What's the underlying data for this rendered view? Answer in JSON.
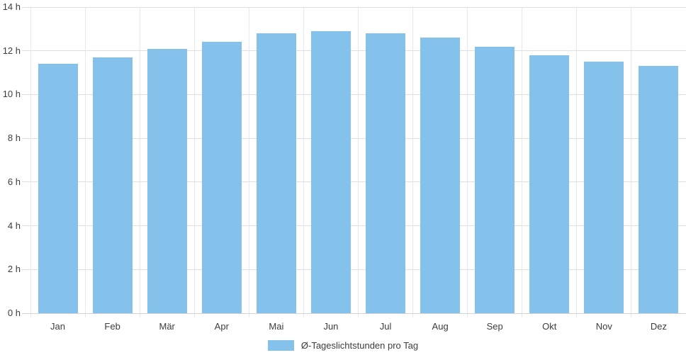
{
  "chart_data": {
    "type": "bar",
    "title": "",
    "xlabel": "",
    "ylabel": "",
    "categories": [
      "Jan",
      "Feb",
      "Mär",
      "Apr",
      "Mai",
      "Jun",
      "Jul",
      "Aug",
      "Sep",
      "Okt",
      "Nov",
      "Dez"
    ],
    "values": [
      11.4,
      11.7,
      12.1,
      12.4,
      12.8,
      12.9,
      12.8,
      12.6,
      12.2,
      11.8,
      11.5,
      11.3
    ],
    "series_name": "Ø-Tageslichtstunden pro Tag",
    "unit": "h",
    "ylim": [
      0,
      14
    ],
    "ytick_step": 2,
    "ytick_labels": [
      "0 h",
      "2 h",
      "4 h",
      "6 h",
      "8 h",
      "10 h",
      "12 h",
      "14 h"
    ],
    "grid": true,
    "legend_position": "bottom",
    "colors": {
      "bar": "#84c2ec",
      "grid_horizontal": "#e0e0e0",
      "grid_vertical": "#e9e9e9",
      "baseline": "#d4d4d4",
      "axis_text": "#3c3c3c"
    }
  }
}
